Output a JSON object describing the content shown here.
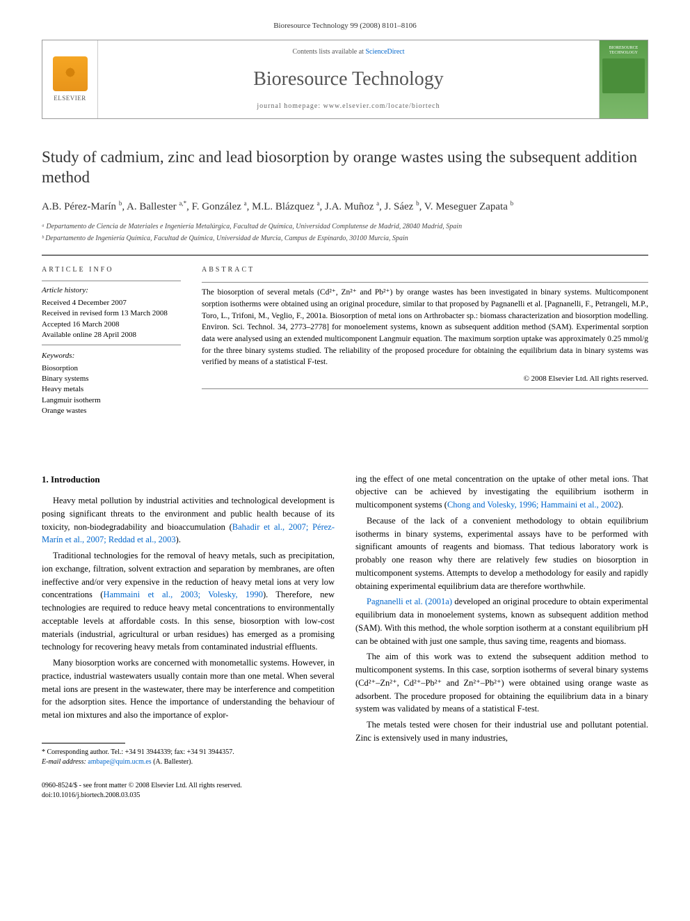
{
  "journal_ref": "Bioresource Technology 99 (2008) 8101–8106",
  "header": {
    "contents_prefix": "Contents lists available at ",
    "contents_link": "ScienceDirect",
    "journal_title": "Bioresource Technology",
    "homepage_prefix": "journal homepage: ",
    "homepage_url": "www.elsevier.com/locate/biortech",
    "publisher": "ELSEVIER",
    "cover_text": "BIORESOURCE TECHNOLOGY"
  },
  "article": {
    "title": "Study of cadmium, zinc and lead biosorption by orange wastes using the subsequent addition method",
    "authors_html": "A.B. Pérez-Marín <sup>b</sup>, A. Ballester <sup>a,*</sup>, F. González <sup>a</sup>, M.L. Blázquez <sup>a</sup>, J.A. Muñoz <sup>a</sup>, J. Sáez <sup>b</sup>, V. Meseguer Zapata <sup>b</sup>",
    "affiliations": [
      "ᵃ Departamento de Ciencia de Materiales e Ingeniería Metalúrgica, Facultad de Química, Universidad Complutense de Madrid, 28040 Madrid, Spain",
      "ᵇ Departamento de Ingeniería Química, Facultad de Química, Universidad de Murcia, Campus de Espinardo, 30100 Murcia, Spain"
    ]
  },
  "info": {
    "heading": "ARTICLE INFO",
    "history_label": "Article history:",
    "history": [
      "Received 4 December 2007",
      "Received in revised form 13 March 2008",
      "Accepted 16 March 2008",
      "Available online 28 April 2008"
    ],
    "keywords_label": "Keywords:",
    "keywords": [
      "Biosorption",
      "Binary systems",
      "Heavy metals",
      "Langmuir isotherm",
      "Orange wastes"
    ]
  },
  "abstract": {
    "heading": "ABSTRACT",
    "text": "The biosorption of several metals (Cd²⁺, Zn²⁺ and Pb²⁺) by orange wastes has been investigated in binary systems. Multicomponent sorption isotherms were obtained using an original procedure, similar to that proposed by Pagnanelli et al. [Pagnanelli, F., Petrangeli, M.P., Toro, L., Trifoni, M., Veglio, F., 2001a. Biosorption of metal ions on Arthrobacter sp.: biomass characterization and biosorption modelling. Environ. Sci. Technol. 34, 2773–2778] for monoelement systems, known as subsequent addition method (SAM). Experimental sorption data were analysed using an extended multicomponent Langmuir equation. The maximum sorption uptake was approximately 0.25 mmol/g for the three binary systems studied. The reliability of the proposed procedure for obtaining the equilibrium data in binary systems was verified by means of a statistical F-test.",
    "copyright": "© 2008 Elsevier Ltd. All rights reserved."
  },
  "body": {
    "section1_heading": "1. Introduction",
    "col1_paras": [
      "Heavy metal pollution by industrial activities and technological development is posing significant threats to the environment and public health because of its toxicity, non-biodegradability and bioaccumulation (<span class=\"ref-link\">Bahadir et al., 2007; Pérez-Marín et al., 2007; Reddad et al., 2003</span>).",
      "Traditional technologies for the removal of heavy metals, such as precipitation, ion exchange, filtration, solvent extraction and separation by membranes, are often ineffective and/or very expensive in the reduction of heavy metal ions at very low concentrations (<span class=\"ref-link\">Hammaini et al., 2003; Volesky, 1990</span>). Therefore, new technologies are required to reduce heavy metal concentrations to environmentally acceptable levels at affordable costs. In this sense, biosorption with low-cost materials (industrial, agricultural or urban residues) has emerged as a promising technology for recovering heavy metals from contaminated industrial effluents.",
      "Many biosorption works are concerned with monometallic systems. However, in practice, industrial wastewaters usually contain more than one metal. When several metal ions are present in the wastewater, there may be interference and competition for the adsorption sites. Hence the importance of understanding the behaviour of metal ion mixtures and also the importance of explor-"
    ],
    "col2_paras": [
      "ing the effect of one metal concentration on the uptake of other metal ions. That objective can be achieved by investigating the equilibrium isotherm in multicomponent systems (<span class=\"ref-link\">Chong and Volesky, 1996; Hammaini et al., 2002</span>).",
      "Because of the lack of a convenient methodology to obtain equilibrium isotherms in binary systems, experimental assays have to be performed with significant amounts of reagents and biomass. That tedious laboratory work is probably one reason why there are relatively few studies on biosorption in multicomponent systems. Attempts to develop a methodology for easily and rapidly obtaining experimental equilibrium data are therefore worthwhile.",
      "<span class=\"ref-link\">Pagnanelli et al. (2001a)</span> developed an original procedure to obtain experimental equilibrium data in monoelement systems, known as subsequent addition method (SAM). With this method, the whole sorption isotherm at a constant equilibrium pH can be obtained with just one sample, thus saving time, reagents and biomass.",
      "The aim of this work was to extend the subsequent addition method to multicomponent systems. In this case, sorption isotherms of several binary systems (Cd²⁺–Zn²⁺, Cd²⁺–Pb²⁺ and Zn²⁺–Pb²⁺) were obtained using orange waste as adsorbent. The procedure proposed for obtaining the equilibrium data in a binary system was validated by means of a statistical F-test.",
      "The metals tested were chosen for their industrial use and pollutant potential. Zinc is extensively used in many industries,"
    ]
  },
  "footnote": {
    "corr": "* Corresponding author. Tel.: +34 91 3944339; fax: +34 91 3944357.",
    "email_label": "E-mail address: ",
    "email": "ambape@quim.ucm.es",
    "email_suffix": " (A. Ballester)."
  },
  "bottom": {
    "line1": "0960-8524/$ - see front matter © 2008 Elsevier Ltd. All rights reserved.",
    "line2": "doi:10.1016/j.biortech.2008.03.035"
  },
  "colors": {
    "link": "#0066cc",
    "text": "#000000",
    "muted": "#555555"
  }
}
